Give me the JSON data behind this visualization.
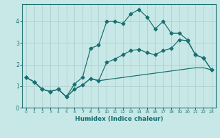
{
  "xlabel": "Humidex (Indice chaleur)",
  "bg_color": "#c8e8e8",
  "line_color": "#1a7070",
  "grid_color": "#b0d0d0",
  "xlim": [
    -0.5,
    23.5
  ],
  "ylim": [
    0,
    4.8
  ],
  "xticks": [
    0,
    1,
    2,
    3,
    4,
    5,
    6,
    7,
    8,
    9,
    10,
    11,
    12,
    13,
    14,
    15,
    16,
    17,
    18,
    19,
    20,
    21,
    22,
    23
  ],
  "yticks": [
    0,
    1,
    2,
    3,
    4
  ],
  "line1_x": [
    0,
    1,
    2,
    3,
    4,
    5,
    6,
    7,
    8,
    9,
    10,
    11,
    12,
    13,
    14,
    15,
    16,
    17,
    18,
    19,
    20,
    21,
    22,
    23
  ],
  "line1_y": [
    1.4,
    1.2,
    0.85,
    0.75,
    0.85,
    0.5,
    0.85,
    1.05,
    1.35,
    1.25,
    1.3,
    1.35,
    1.4,
    1.45,
    1.5,
    1.55,
    1.6,
    1.65,
    1.7,
    1.75,
    1.8,
    1.85,
    1.85,
    1.75
  ],
  "line2_x": [
    0,
    1,
    2,
    3,
    4,
    5,
    6,
    7,
    8,
    9,
    10,
    11,
    12,
    13,
    14,
    15,
    16,
    17,
    18,
    19,
    20,
    21,
    22,
    23
  ],
  "line2_y": [
    1.4,
    1.2,
    0.85,
    0.75,
    0.85,
    0.5,
    1.1,
    1.4,
    2.75,
    2.9,
    4.0,
    4.0,
    3.9,
    4.35,
    4.55,
    4.2,
    3.65,
    4.0,
    3.45,
    3.45,
    3.15,
    2.45,
    2.3,
    1.75
  ],
  "line3_x": [
    0,
    1,
    2,
    3,
    4,
    5,
    6,
    7,
    8,
    9,
    10,
    11,
    12,
    13,
    14,
    15,
    16,
    17,
    18,
    19,
    20,
    21,
    22,
    23
  ],
  "line3_y": [
    1.4,
    1.2,
    0.85,
    0.75,
    0.85,
    0.5,
    0.85,
    1.05,
    1.35,
    1.25,
    2.1,
    2.25,
    2.45,
    2.65,
    2.7,
    2.55,
    2.45,
    2.65,
    2.75,
    3.15,
    3.1,
    2.45,
    2.3,
    1.75
  ]
}
